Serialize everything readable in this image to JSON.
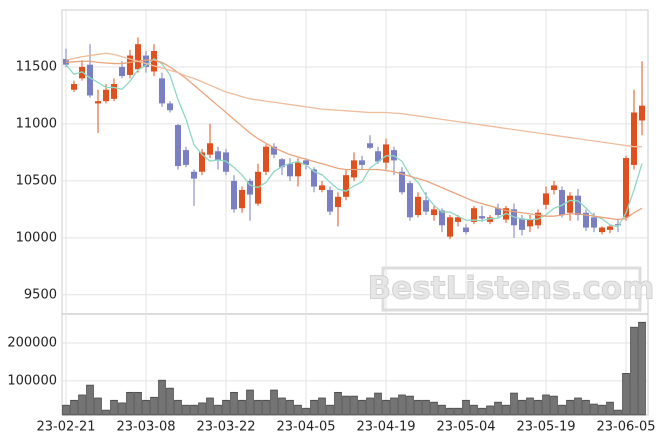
{
  "watermark": "BestListens.com",
  "chart_data": [
    {
      "type": "candlestick",
      "grid": true,
      "up_color": "#e0501e",
      "down_color": "#7a7ec2",
      "categories": [
        "23-02-21",
        null,
        null,
        null,
        null,
        null,
        null,
        null,
        null,
        null,
        "23-03-08",
        null,
        null,
        null,
        null,
        null,
        null,
        null,
        null,
        null,
        "23-03-22",
        null,
        null,
        null,
        null,
        null,
        null,
        null,
        null,
        null,
        "23-04-05",
        null,
        null,
        null,
        null,
        null,
        null,
        null,
        null,
        null,
        "23-04-19",
        null,
        null,
        null,
        null,
        null,
        null,
        null,
        null,
        null,
        "23-05-04",
        null,
        null,
        null,
        null,
        null,
        null,
        null,
        null,
        null,
        "23-05-19",
        null,
        null,
        null,
        null,
        null,
        null,
        null,
        null,
        null,
        "23-06-05",
        null,
        null
      ],
      "open": [
        11570,
        11300,
        11400,
        11520,
        11180,
        11200,
        11220,
        11500,
        11430,
        11480,
        11600,
        11460,
        11400,
        11180,
        10990,
        10770,
        10580,
        10580,
        10730,
        10760,
        10750,
        10500,
        10260,
        10500,
        10300,
        10580,
        10800,
        10690,
        10650,
        10540,
        10680,
        10600,
        10420,
        10420,
        10270,
        10360,
        10530,
        10680,
        10830,
        10760,
        10660,
        10770,
        10580,
        10480,
        10200,
        10330,
        10200,
        10240,
        10010,
        10140,
        10090,
        10140,
        10190,
        10140,
        10260,
        10160,
        10250,
        10170,
        10100,
        10110,
        10290,
        10420,
        10420,
        10220,
        10370,
        10220,
        10180,
        10050,
        10070,
        10120,
        10180,
        10640,
        11030
      ],
      "high": [
        11660,
        11380,
        11560,
        11700,
        11300,
        11350,
        11400,
        11550,
        11650,
        11760,
        11640,
        11700,
        11450,
        11200,
        11000,
        10800,
        10600,
        10780,
        11000,
        10800,
        10780,
        10550,
        10450,
        10520,
        10650,
        10820,
        10830,
        10700,
        10700,
        10700,
        10700,
        10620,
        10500,
        10450,
        10400,
        10600,
        10750,
        10720,
        10900,
        10800,
        10870,
        10800,
        10620,
        10500,
        10400,
        10400,
        10280,
        10260,
        10200,
        10200,
        10120,
        10280,
        10280,
        10200,
        10300,
        10280,
        10300,
        10200,
        10200,
        10250,
        10450,
        10500,
        10450,
        10400,
        10430,
        10250,
        10220,
        10100,
        10120,
        10170,
        10720,
        11300,
        11550
      ],
      "low": [
        11500,
        11280,
        11380,
        11230,
        10920,
        11180,
        11200,
        11400,
        11400,
        11450,
        11450,
        11420,
        11150,
        11100,
        10600,
        10620,
        10280,
        10550,
        10700,
        10600,
        10550,
        10220,
        10220,
        10150,
        10280,
        10550,
        10700,
        10550,
        10500,
        10450,
        10600,
        10400,
        10400,
        10200,
        10100,
        10330,
        10500,
        10600,
        10780,
        10650,
        10600,
        10550,
        10380,
        10150,
        10180,
        10200,
        10150,
        10050,
        9990,
        10100,
        10030,
        10120,
        10140,
        10120,
        10180,
        10130,
        10000,
        10020,
        10050,
        10080,
        10250,
        10380,
        10180,
        10150,
        10150,
        10060,
        10050,
        10030,
        10040,
        10050,
        10150,
        10600,
        10900
      ],
      "close": [
        11520,
        11350,
        11500,
        11250,
        11200,
        11300,
        11350,
        11420,
        11600,
        11700,
        11500,
        11640,
        11180,
        11120,
        10630,
        10640,
        10520,
        10750,
        10830,
        10680,
        10580,
        10250,
        10420,
        10380,
        10580,
        10800,
        10730,
        10620,
        10540,
        10660,
        10640,
        10450,
        10460,
        10230,
        10360,
        10550,
        10680,
        10640,
        10790,
        10670,
        10820,
        10680,
        10400,
        10180,
        10360,
        10230,
        10250,
        10110,
        10180,
        10180,
        10050,
        10260,
        10170,
        10180,
        10200,
        10260,
        10110,
        10070,
        10160,
        10220,
        10390,
        10460,
        10200,
        10370,
        10200,
        10090,
        10090,
        10090,
        10100,
        10110,
        10700,
        11100,
        11160
      ],
      "lines": [
        {
          "color": "#8fd8c4",
          "values": [
            11520,
            11435,
            11457,
            11405,
            11364,
            11320,
            11320,
            11304,
            11374,
            11474,
            11514,
            11572,
            11528,
            11428,
            11214,
            11042,
            10818,
            10732,
            10674,
            10684,
            10672,
            10618,
            10552,
            10462,
            10442,
            10486,
            10582,
            10626,
            10654,
            10670,
            10638,
            10582,
            10554,
            10488,
            10428,
            10410,
            10456,
            10492,
            10612,
            10666,
            10720,
            10720,
            10672,
            10550,
            10488,
            10370,
            10284,
            10226,
            10226,
            10190,
            10154,
            10156,
            10150,
            10168,
            10172,
            10214,
            10184,
            10164,
            10160,
            10164,
            10202,
            10260,
            10286,
            10328,
            10324,
            10262,
            10190,
            10168,
            10114,
            10096,
            10218,
            10420,
            10652
          ]
        },
        {
          "color": "#e9a47c",
          "values": [
            11540,
            11545,
            11550,
            11550,
            11540,
            11535,
            11530,
            11530,
            11540,
            11550,
            11560,
            11560,
            11540,
            11500,
            11450,
            11400,
            11340,
            11280,
            11220,
            11160,
            11100,
            11040,
            10980,
            10920,
            10870,
            10830,
            10790,
            10760,
            10730,
            10710,
            10690,
            10670,
            10650,
            10630,
            10610,
            10600,
            10600,
            10600,
            10600,
            10600,
            10590,
            10580,
            10560,
            10540,
            10520,
            10500,
            10470,
            10440,
            10410,
            10380,
            10350,
            10320,
            10300,
            10280,
            10260,
            10240,
            10230,
            10220,
            10210,
            10200,
            10190,
            10190,
            10200,
            10210,
            10210,
            10200,
            10190,
            10180,
            10170,
            10160,
            10170,
            10220,
            10260
          ]
        },
        {
          "color": "#efbc9c",
          "values": [
            11560,
            11575,
            11590,
            11600,
            11610,
            11620,
            11610,
            11590,
            11570,
            11550,
            11530,
            11510,
            11490,
            11470,
            11450,
            11420,
            11400,
            11370,
            11340,
            11310,
            11280,
            11260,
            11240,
            11220,
            11210,
            11200,
            11190,
            11180,
            11170,
            11160,
            11150,
            11140,
            11130,
            11125,
            11120,
            11115,
            11110,
            11105,
            11100,
            11100,
            11100,
            11095,
            11090,
            11080,
            11070,
            11060,
            11050,
            11040,
            11030,
            11020,
            11010,
            11000,
            10990,
            10980,
            10970,
            10960,
            10950,
            10940,
            10930,
            10920,
            10910,
            10900,
            10890,
            10880,
            10870,
            10860,
            10850,
            10840,
            10830,
            10820,
            10810,
            10800,
            10800
          ]
        }
      ],
      "ylim": [
        9340,
        12000
      ],
      "yticks": [
        9500,
        10000,
        10500,
        11000,
        11500
      ]
    },
    {
      "type": "bar",
      "grid": true,
      "color": "#747474",
      "values": [
        36000,
        49000,
        63000,
        89000,
        55000,
        23000,
        49000,
        42000,
        70000,
        70000,
        49000,
        57000,
        102000,
        81000,
        49000,
        36000,
        36000,
        42000,
        55000,
        36000,
        49000,
        70000,
        49000,
        76000,
        49000,
        49000,
        76000,
        55000,
        49000,
        36000,
        28000,
        49000,
        55000,
        36000,
        70000,
        60000,
        60000,
        49000,
        55000,
        68000,
        49000,
        55000,
        63000,
        60000,
        49000,
        49000,
        44000,
        36000,
        28000,
        28000,
        49000,
        36000,
        28000,
        34000,
        44000,
        36000,
        68000,
        49000,
        55000,
        49000,
        63000,
        60000,
        36000,
        49000,
        55000,
        49000,
        39000,
        36000,
        44000,
        23000,
        120000,
        242000,
        255000
      ],
      "ylim": [
        10000,
        274000
      ],
      "yticks": [
        100000,
        200000
      ]
    }
  ]
}
